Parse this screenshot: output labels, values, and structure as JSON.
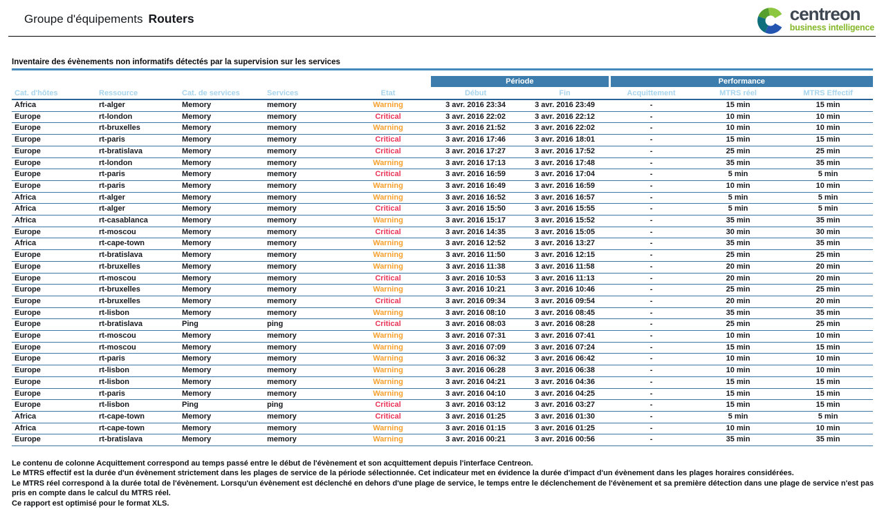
{
  "header": {
    "title_prefix": "Groupe d'équipements",
    "title_emphasis": "Routers"
  },
  "logo": {
    "brand": "centreon",
    "tagline": "business intelligence"
  },
  "section": {
    "title": "Inventaire des évènements non informatifs détectés par la supervision sur les services"
  },
  "table": {
    "group_headers": [
      {
        "label": "Période",
        "span": 2
      },
      {
        "label": "Performance",
        "span": 3
      }
    ],
    "columns": [
      "Cat. d'hôtes",
      "Ressource",
      "Cat. de services",
      "Services",
      "Etat",
      "Début",
      "Fin",
      "Acquittement",
      "MTRS réel",
      "MTRS Effectif"
    ],
    "col_keys": [
      "host-category-cell",
      "resource-cell",
      "service-category-cell",
      "service-cell",
      "state-cell",
      "start-cell",
      "end-cell",
      "ack-cell",
      "mtrs-real-cell",
      "mtrs-effective-cell"
    ],
    "rows": [
      [
        "Africa",
        "rt-alger",
        "Memory",
        "memory",
        "Warning",
        "3 avr. 2016 23:34",
        "3 avr. 2016 23:49",
        "-",
        "15 min",
        "15 min"
      ],
      [
        "Europe",
        "rt-london",
        "Memory",
        "memory",
        "Critical",
        "3 avr. 2016 22:02",
        "3 avr. 2016 22:12",
        "-",
        "10 min",
        "10 min"
      ],
      [
        "Europe",
        "rt-bruxelles",
        "Memory",
        "memory",
        "Warning",
        "3 avr. 2016 21:52",
        "3 avr. 2016 22:02",
        "-",
        "10 min",
        "10 min"
      ],
      [
        "Europe",
        "rt-paris",
        "Memory",
        "memory",
        "Critical",
        "3 avr. 2016 17:46",
        "3 avr. 2016 18:01",
        "-",
        "15 min",
        "15 min"
      ],
      [
        "Europe",
        "rt-bratislava",
        "Memory",
        "memory",
        "Critical",
        "3 avr. 2016 17:27",
        "3 avr. 2016 17:52",
        "-",
        "25 min",
        "25 min"
      ],
      [
        "Europe",
        "rt-london",
        "Memory",
        "memory",
        "Warning",
        "3 avr. 2016 17:13",
        "3 avr. 2016 17:48",
        "-",
        "35 min",
        "35 min"
      ],
      [
        "Europe",
        "rt-paris",
        "Memory",
        "memory",
        "Critical",
        "3 avr. 2016 16:59",
        "3 avr. 2016 17:04",
        "-",
        "5 min",
        "5 min"
      ],
      [
        "Europe",
        "rt-paris",
        "Memory",
        "memory",
        "Warning",
        "3 avr. 2016 16:49",
        "3 avr. 2016 16:59",
        "-",
        "10 min",
        "10 min"
      ],
      [
        "Africa",
        "rt-alger",
        "Memory",
        "memory",
        "Warning",
        "3 avr. 2016 16:52",
        "3 avr. 2016 16:57",
        "-",
        "5 min",
        "5 min"
      ],
      [
        "Africa",
        "rt-alger",
        "Memory",
        "memory",
        "Critical",
        "3 avr. 2016 15:50",
        "3 avr. 2016 15:55",
        "-",
        "5 min",
        "5 min"
      ],
      [
        "Africa",
        "rt-casablanca",
        "Memory",
        "memory",
        "Warning",
        "3 avr. 2016 15:17",
        "3 avr. 2016 15:52",
        "-",
        "35 min",
        "35 min"
      ],
      [
        "Europe",
        "rt-moscou",
        "Memory",
        "memory",
        "Critical",
        "3 avr. 2016 14:35",
        "3 avr. 2016 15:05",
        "-",
        "30 min",
        "30 min"
      ],
      [
        "Africa",
        "rt-cape-town",
        "Memory",
        "memory",
        "Warning",
        "3 avr. 2016 12:52",
        "3 avr. 2016 13:27",
        "-",
        "35 min",
        "35 min"
      ],
      [
        "Europe",
        "rt-bratislava",
        "Memory",
        "memory",
        "Warning",
        "3 avr. 2016 11:50",
        "3 avr. 2016 12:15",
        "-",
        "25 min",
        "25 min"
      ],
      [
        "Europe",
        "rt-bruxelles",
        "Memory",
        "memory",
        "Warning",
        "3 avr. 2016 11:38",
        "3 avr. 2016 11:58",
        "-",
        "20 min",
        "20 min"
      ],
      [
        "Europe",
        "rt-moscou",
        "Memory",
        "memory",
        "Critical",
        "3 avr. 2016 10:53",
        "3 avr. 2016 11:13",
        "-",
        "20 min",
        "20 min"
      ],
      [
        "Europe",
        "rt-bruxelles",
        "Memory",
        "memory",
        "Warning",
        "3 avr. 2016 10:21",
        "3 avr. 2016 10:46",
        "-",
        "25 min",
        "25 min"
      ],
      [
        "Europe",
        "rt-bruxelles",
        "Memory",
        "memory",
        "Critical",
        "3 avr. 2016 09:34",
        "3 avr. 2016 09:54",
        "-",
        "20 min",
        "20 min"
      ],
      [
        "Europe",
        "rt-lisbon",
        "Memory",
        "memory",
        "Warning",
        "3 avr. 2016 08:10",
        "3 avr. 2016 08:45",
        "-",
        "35 min",
        "35 min"
      ],
      [
        "Europe",
        "rt-bratislava",
        "Ping",
        "ping",
        "Critical",
        "3 avr. 2016 08:03",
        "3 avr. 2016 08:28",
        "-",
        "25 min",
        "25 min"
      ],
      [
        "Europe",
        "rt-moscou",
        "Memory",
        "memory",
        "Warning",
        "3 avr. 2016 07:31",
        "3 avr. 2016 07:41",
        "-",
        "10 min",
        "10 min"
      ],
      [
        "Europe",
        "rt-moscou",
        "Memory",
        "memory",
        "Warning",
        "3 avr. 2016 07:09",
        "3 avr. 2016 07:24",
        "-",
        "15 min",
        "15 min"
      ],
      [
        "Europe",
        "rt-paris",
        "Memory",
        "memory",
        "Warning",
        "3 avr. 2016 06:32",
        "3 avr. 2016 06:42",
        "-",
        "10 min",
        "10 min"
      ],
      [
        "Europe",
        "rt-lisbon",
        "Memory",
        "memory",
        "Warning",
        "3 avr. 2016 06:28",
        "3 avr. 2016 06:38",
        "-",
        "10 min",
        "10 min"
      ],
      [
        "Europe",
        "rt-lisbon",
        "Memory",
        "memory",
        "Warning",
        "3 avr. 2016 04:21",
        "3 avr. 2016 04:36",
        "-",
        "15 min",
        "15 min"
      ],
      [
        "Europe",
        "rt-paris",
        "Memory",
        "memory",
        "Warning",
        "3 avr. 2016 04:10",
        "3 avr. 2016 04:25",
        "-",
        "15 min",
        "15 min"
      ],
      [
        "Europe",
        "rt-lisbon",
        "Ping",
        "ping",
        "Critical",
        "3 avr. 2016 03:12",
        "3 avr. 2016 03:27",
        "-",
        "15 min",
        "15 min"
      ],
      [
        "Africa",
        "rt-cape-town",
        "Memory",
        "memory",
        "Critical",
        "3 avr. 2016 01:25",
        "3 avr. 2016 01:30",
        "-",
        "5 min",
        "5 min"
      ],
      [
        "Africa",
        "rt-cape-town",
        "Memory",
        "memory",
        "Warning",
        "3 avr. 2016 01:15",
        "3 avr. 2016 01:25",
        "-",
        "10 min",
        "10 min"
      ],
      [
        "Europe",
        "rt-bratislava",
        "Memory",
        "memory",
        "Warning",
        "3 avr. 2016 00:21",
        "3 avr. 2016 00:56",
        "-",
        "35 min",
        "35 min"
      ]
    ]
  },
  "footnotes": [
    "Le contenu de colonne Acquittement correspond au temps passé entre le début de l'évènement et son acquittement depuis l'interface Centreon.",
    "Le MTRS effectif est la durée d'un évènement strictement dans les plages de service de la période sélectionnée. Cet indicateur met en évidence la durée d'impact d'un évènement dans les plages horaires considérées.",
    "Le MTRS réel correspond à la durée total de l'évènement. Lorsqu'un évènement est déclenché en dehors d'une plage de service, le temps entre le déclenchement de l'évènement et sa première détection dans une plage de service n'est pas pris en compte dans le calcul du MTRS réel.",
    "Ce rapport est optimisé pour le format XLS."
  ],
  "colors": {
    "header_blue": "#3d7dad",
    "subheader_text": "#a7d4ec",
    "warning": "#f7a02e",
    "critical": "#ea3457",
    "rule_blue": "#4389bd",
    "row_border": "#3a76a6",
    "brand_text": "#3e4751",
    "brand_green": "#84b829",
    "logo_segments": [
      "#8dc63f",
      "#569e2e",
      "#0e6e7c",
      "#2455b0"
    ]
  }
}
